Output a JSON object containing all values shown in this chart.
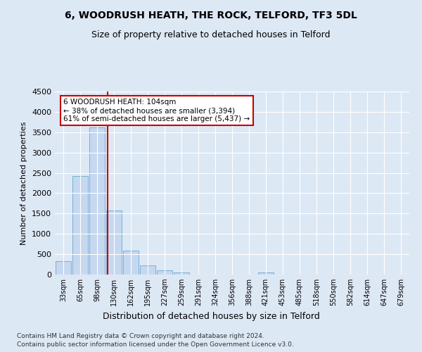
{
  "title1": "6, WOODRUSH HEATH, THE ROCK, TELFORD, TF3 5DL",
  "title2": "Size of property relative to detached houses in Telford",
  "xlabel": "Distribution of detached houses by size in Telford",
  "ylabel": "Number of detached properties",
  "categories": [
    "33sqm",
    "65sqm",
    "98sqm",
    "130sqm",
    "162sqm",
    "195sqm",
    "227sqm",
    "259sqm",
    "291sqm",
    "324sqm",
    "356sqm",
    "388sqm",
    "421sqm",
    "453sqm",
    "485sqm",
    "518sqm",
    "550sqm",
    "582sqm",
    "614sqm",
    "647sqm",
    "679sqm"
  ],
  "values": [
    330,
    2420,
    3620,
    1580,
    590,
    220,
    100,
    60,
    0,
    0,
    0,
    0,
    60,
    0,
    0,
    0,
    0,
    0,
    0,
    0,
    0
  ],
  "bar_color": "#c5d8f0",
  "bar_edge_color": "#7aafd4",
  "annotation_text1": "6 WOODRUSH HEATH: 104sqm",
  "annotation_text2": "← 38% of detached houses are smaller (3,394)",
  "annotation_text3": "61% of semi-detached houses are larger (5,437) →",
  "annotation_box_color": "#ffffff",
  "annotation_box_edge_color": "#cc0000",
  "property_line_color": "#cc0000",
  "ylim": [
    0,
    4500
  ],
  "yticks": [
    0,
    500,
    1000,
    1500,
    2000,
    2500,
    3000,
    3500,
    4000,
    4500
  ],
  "footnote1": "Contains HM Land Registry data © Crown copyright and database right 2024.",
  "footnote2": "Contains public sector information licensed under the Open Government Licence v3.0.",
  "bg_color": "#dde8f5"
}
